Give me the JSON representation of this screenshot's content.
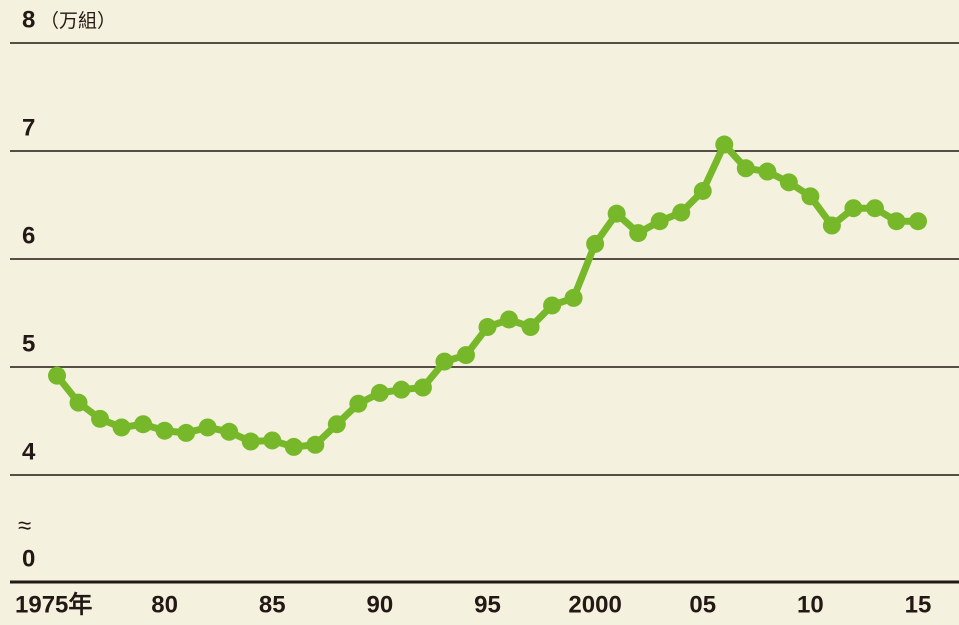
{
  "chart_data": {
    "type": "line",
    "y_unit": "（万組）",
    "x": [
      1975,
      1976,
      1977,
      1978,
      1979,
      1980,
      1981,
      1982,
      1983,
      1984,
      1985,
      1986,
      1987,
      1988,
      1989,
      1990,
      1991,
      1992,
      1993,
      1994,
      1995,
      1996,
      1997,
      1998,
      1999,
      2000,
      2001,
      2002,
      2003,
      2004,
      2005,
      2006,
      2007,
      2008,
      2009,
      2010,
      2011,
      2012,
      2013,
      2014,
      2015
    ],
    "series": [
      {
        "color": "#77b82a",
        "values": [
          4.92,
          4.67,
          4.52,
          4.44,
          4.47,
          4.41,
          4.39,
          4.44,
          4.4,
          4.31,
          4.32,
          4.26,
          4.28,
          4.47,
          4.66,
          4.76,
          4.79,
          4.81,
          5.05,
          5.11,
          5.37,
          5.44,
          5.37,
          5.57,
          5.64,
          6.14,
          6.42,
          6.24,
          6.35,
          6.43,
          6.63,
          7.06,
          6.84,
          6.81,
          6.71,
          6.58,
          6.31,
          6.47,
          6.47,
          6.35,
          6.35
        ]
      }
    ],
    "xlim": [
      1975,
      2015
    ],
    "xticks": [
      {
        "value": 1975,
        "label": "1975年"
      },
      {
        "value": 1980,
        "label": "80"
      },
      {
        "value": 1985,
        "label": "85"
      },
      {
        "value": 1990,
        "label": "90"
      },
      {
        "value": 1995,
        "label": "95"
      },
      2000,
      {
        "value": 2005,
        "label": "05"
      },
      {
        "value": 2010,
        "label": "10"
      },
      {
        "value": 2015,
        "label": "15"
      }
    ],
    "ylim": [
      0,
      8
    ],
    "yticks": [
      0,
      4,
      5,
      6,
      7,
      8
    ],
    "axis_break": {
      "from": 0,
      "to": 4,
      "label": "≈"
    },
    "grid": true
  }
}
